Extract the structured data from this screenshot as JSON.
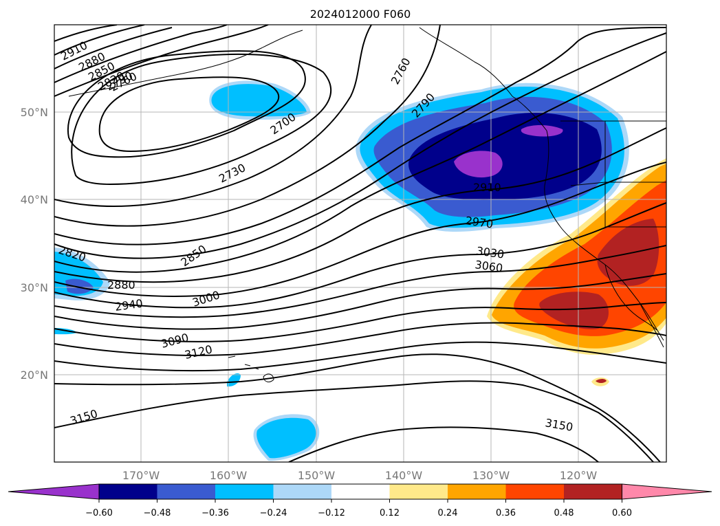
{
  "title": "2024012000 F060",
  "lat_labels": [
    "50°N",
    "40°N",
    "30°N",
    "20°N"
  ],
  "lon_labels": [
    "170°W",
    "160°W",
    "150°W",
    "140°W",
    "130°W",
    "120°W"
  ],
  "contour_labels": [
    "2910",
    "2880",
    "2850",
    "2820",
    "2790",
    "2760",
    "2760",
    "2790",
    "2700",
    "2730",
    "2910",
    "2970",
    "3030",
    "3060",
    "2820",
    "2880",
    "2940",
    "3000",
    "2850",
    "3090",
    "3120",
    "3150",
    "3150"
  ],
  "colorbar": {
    "tick_labels": [
      "−0.60",
      "−0.48",
      "−0.36",
      "−0.24",
      "−0.12",
      "0.12",
      "0.24",
      "0.36",
      "0.48",
      "0.60"
    ],
    "colors": [
      "#9932cc",
      "#00008b",
      "#3a5bd0",
      "#00bfff",
      "#add8f8",
      "#ffffff",
      "#ffe98a",
      "#ffa500",
      "#ff4500",
      "#b22222",
      "#ff88aa"
    ]
  },
  "fill_colors": {
    "lightblue": "#add8f8",
    "cyan": "#00bfff",
    "royal": "#3a5bd0",
    "navy": "#00008b",
    "purple": "#9932cc",
    "yellow": "#ffe98a",
    "orange": "#ffa500",
    "redorange": "#ff4500",
    "firebrick": "#b22222"
  }
}
